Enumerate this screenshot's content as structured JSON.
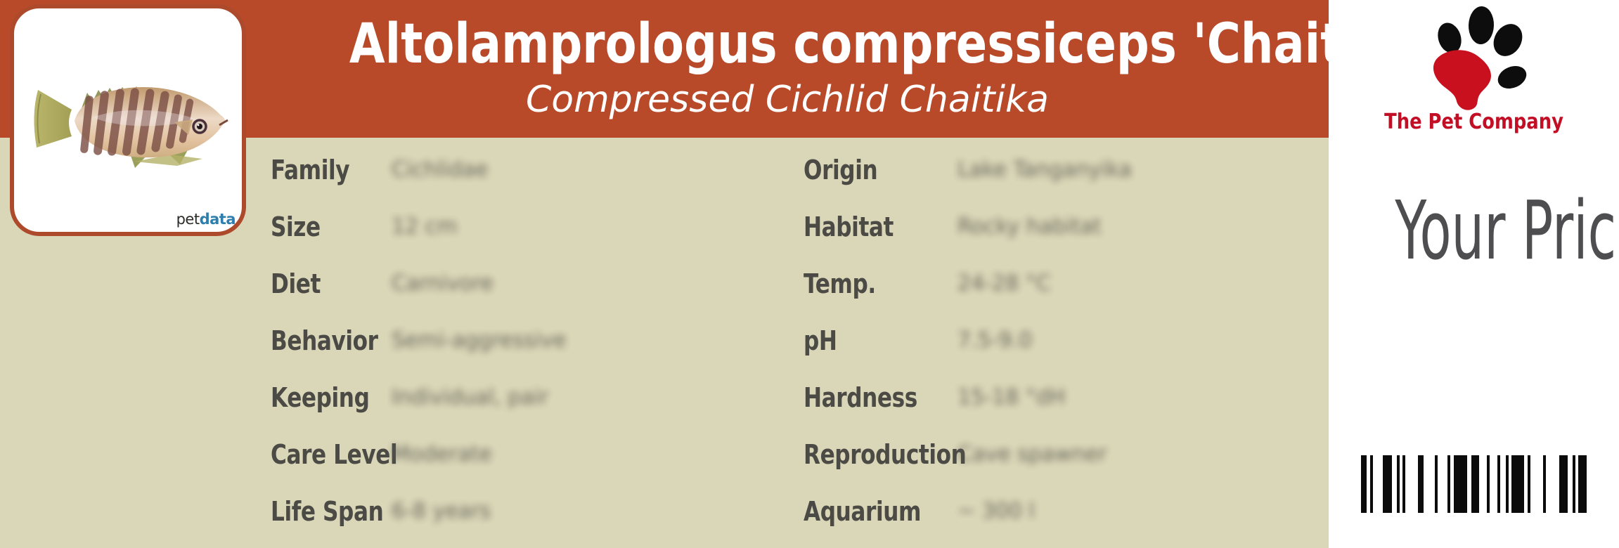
{
  "header": {
    "title": "Altolamprologus compressiceps 'Chaitika'",
    "subtitle": "Compressed Cichlid Chaitika"
  },
  "photo_card": {
    "photo": "striped-cichlid-fish",
    "logo_pet": "pet",
    "logo_data": "data"
  },
  "table": {
    "left_rows": [
      {
        "label": "Family",
        "value": "Cichlidae"
      },
      {
        "label": "Size",
        "value": "12 cm"
      },
      {
        "label": "Diet",
        "value": "Carnivore"
      },
      {
        "label": "Behavior",
        "value": "Semi-aggressive"
      },
      {
        "label": "Keeping",
        "value": "Individual, pair"
      },
      {
        "label": "Care Level",
        "value": "Moderate"
      },
      {
        "label": "Life Span",
        "value": "6-8 years"
      }
    ],
    "right_rows": [
      {
        "label": "Origin",
        "value": "Lake Tanganyika"
      },
      {
        "label": "Habitat",
        "value": "Rocky habitat"
      },
      {
        "label": "Temp.",
        "value": "24-28 °C"
      },
      {
        "label": "pH",
        "value": "7.5-9.0"
      },
      {
        "label": "Hardness",
        "value": "15-18 °dH"
      },
      {
        "label": "Reproduction",
        "value": "Cave spawner"
      },
      {
        "label": "Aquarium",
        "value": "~ 300 l"
      }
    ]
  },
  "side_panel": {
    "brand": "The Pet Company",
    "price_label": "Your Price",
    "barcode_bars": [
      8,
      5,
      4,
      14,
      13,
      7,
      4,
      4,
      4,
      18,
      8,
      16,
      4,
      14,
      4,
      5,
      19,
      6,
      11,
      11,
      4,
      11,
      4,
      8,
      4,
      4,
      18,
      5,
      4,
      18,
      4,
      19,
      12,
      7,
      4,
      4,
      12
    ]
  },
  "colors": {
    "band": "#b84a2a",
    "table_bg": "#dad6b8",
    "card_border": "#ad4a2c",
    "brand_red": "#c30f26",
    "price_gray": "#4e4e50",
    "label_gray": "#4b4a45",
    "petdata_blue": "#2e7fae"
  }
}
